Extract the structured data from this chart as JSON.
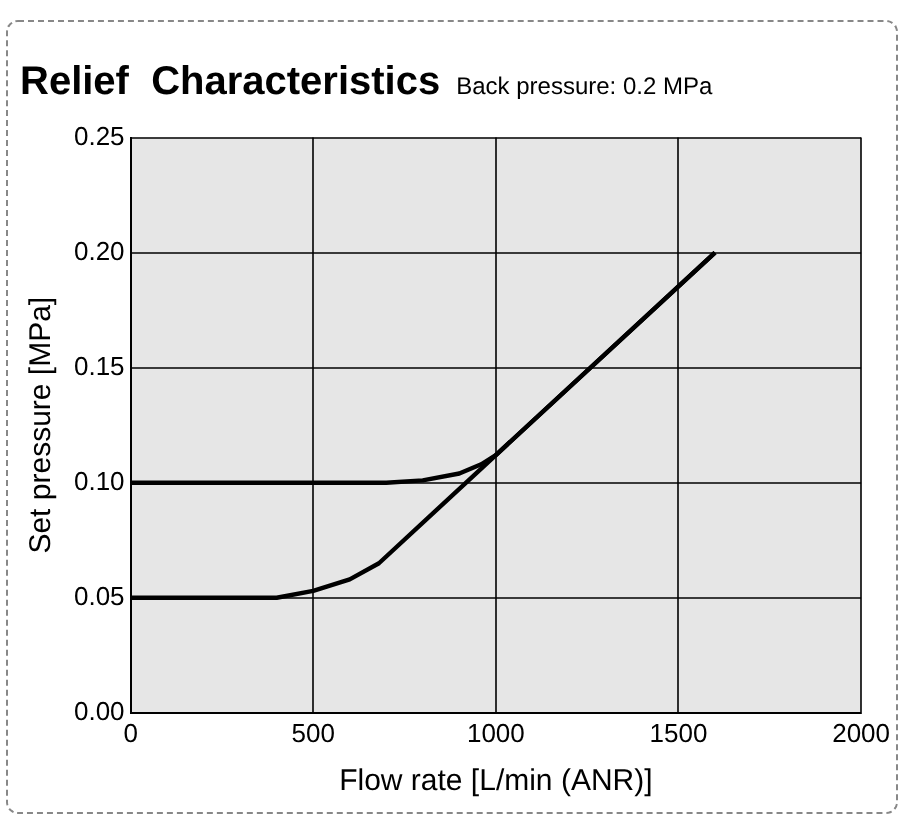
{
  "chart_data": {
    "type": "line",
    "title": "Relief  Characteristics",
    "subtitle": "Back pressure: 0.2 MPa",
    "xlabel": "Flow rate [L/min (ANR)]",
    "ylabel": "Set pressure [MPa]",
    "series": [
      {
        "color": "#000000",
        "x": [
          0,
          700,
          800,
          900,
          960,
          1000,
          1600
        ],
        "values": [
          0.1,
          0.1,
          0.101,
          0.104,
          0.108,
          0.112,
          0.2
        ]
      },
      {
        "color": "#000000",
        "x": [
          0,
          400,
          500,
          600,
          680,
          1000,
          1600
        ],
        "values": [
          0.05,
          0.05,
          0.053,
          0.058,
          0.065,
          0.112,
          0.2
        ]
      }
    ],
    "xlim": [
      0,
      2000
    ],
    "xticks": [
      0,
      500,
      1000,
      1500,
      2000
    ],
    "ylim": [
      0,
      0.25
    ],
    "yticks": [
      {
        "value": 0,
        "label": "0.00"
      },
      {
        "value": 0.05,
        "label": "0.05"
      },
      {
        "value": 0.1,
        "label": "0.10"
      },
      {
        "value": 0.15,
        "label": "0.15"
      },
      {
        "value": 0.2,
        "label": "0.20"
      },
      {
        "value": 0.25,
        "label": "0.25"
      }
    ],
    "grid": true,
    "legend": false,
    "marker": "none",
    "line_style": "solid"
  }
}
